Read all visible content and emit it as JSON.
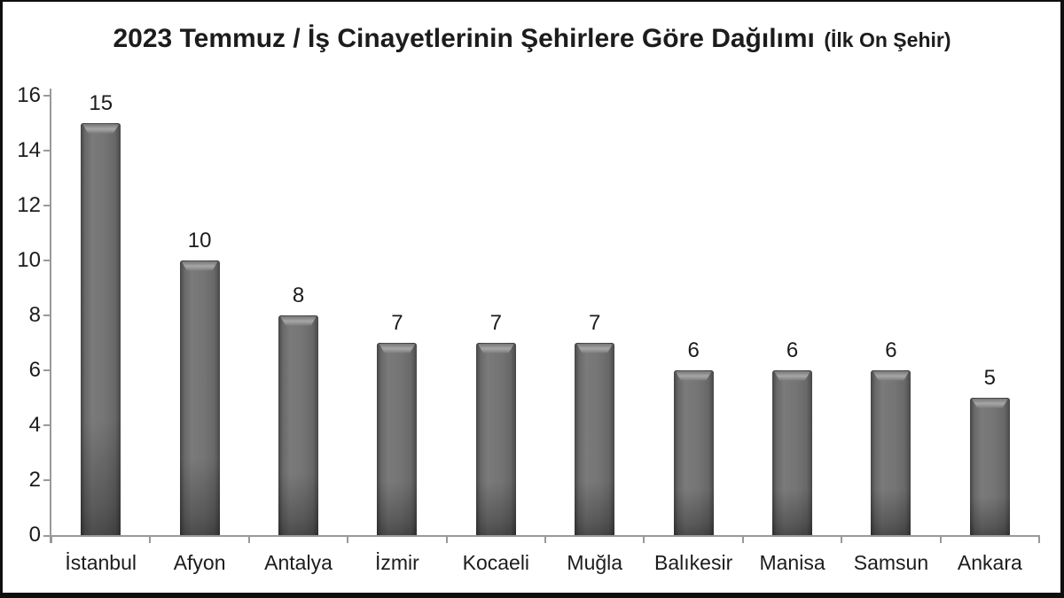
{
  "title": {
    "main": "2023 Temmuz / İş Cinayetlerinin Şehirlere Göre Dağılımı",
    "suffix": "(İlk On Şehir)"
  },
  "chart_data": {
    "type": "bar",
    "title": "2023 Temmuz / İş Cinayetlerinin Şehirlere Göre Dağılımı (İlk On Şehir)",
    "categories": [
      "İstanbul",
      "Afyon",
      "Antalya",
      "İzmir",
      "Kocaeli",
      "Muğla",
      "Balıkesir",
      "Manisa",
      "Samsun",
      "Ankara"
    ],
    "values": [
      15,
      10,
      8,
      7,
      7,
      7,
      6,
      6,
      6,
      5
    ],
    "xlabel": "",
    "ylabel": "",
    "ylim": [
      0,
      16
    ],
    "yticks": [
      0,
      2,
      4,
      6,
      8,
      10,
      12,
      14,
      16
    ],
    "grid": false,
    "legend": false,
    "data_labels": true,
    "colors": {
      "bar_body": "#6f6f6f",
      "bar_edge": "#454545",
      "bar_highlight": "#a6a6a6",
      "axis": "#999999",
      "text": "#1c1c1c",
      "frame_border": "#0f0f0f",
      "background": "#ffffff"
    }
  }
}
